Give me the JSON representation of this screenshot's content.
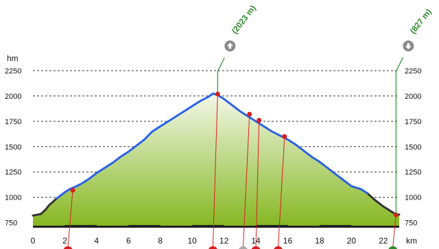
{
  "chart_data": {
    "type": "area",
    "title": "",
    "xlabel": "km",
    "ylabel": "hm",
    "x_unit": "km",
    "y_unit": "hm",
    "xlim": [
      0,
      23
    ],
    "ylim": [
      720,
      2250
    ],
    "x_ticks": [
      0,
      2,
      4,
      6,
      8,
      10,
      12,
      14,
      16,
      18,
      20,
      22
    ],
    "y_ticks": [
      750,
      1000,
      1250,
      1500,
      1750,
      2000,
      2250
    ],
    "grid": "horizontal-dashed",
    "line_color": "#2b62e6",
    "fill_top_color": "#f4f8ea",
    "fill_bottom_color": "#86b822",
    "series": [
      {
        "x": [
          0,
          0.5,
          0.8,
          1,
          1.5,
          2,
          2.3,
          2.6,
          3,
          3.5,
          4,
          4.5,
          5,
          5.5,
          6,
          6.5,
          7,
          7.5,
          8,
          8.5,
          9,
          9.5,
          10,
          10.5,
          11,
          11.3,
          11.6,
          12,
          12.5,
          13,
          13.5,
          14,
          14.5,
          15,
          15.5,
          16,
          16.5,
          17,
          17.5,
          18,
          18.5,
          19,
          19.5,
          20,
          20.3,
          20.6,
          21,
          21.5,
          22,
          22.5,
          22.85,
          23
        ],
        "values": [
          820,
          835,
          880,
          920,
          990,
          1050,
          1080,
          1100,
          1130,
          1180,
          1240,
          1290,
          1340,
          1400,
          1450,
          1510,
          1570,
          1650,
          1700,
          1750,
          1800,
          1850,
          1900,
          1950,
          1990,
          2023,
          2010,
          1970,
          1910,
          1850,
          1800,
          1750,
          1700,
          1650,
          1610,
          1570,
          1520,
          1460,
          1400,
          1350,
          1290,
          1230,
          1170,
          1110,
          1095,
          1080,
          1040,
          970,
          910,
          860,
          827,
          830
        ]
      }
    ],
    "waypoints": [
      {
        "x": 2.5,
        "y": 1070,
        "color": "#d81e1e"
      },
      {
        "x": 11.6,
        "y": 2020,
        "color": "#d81e1e"
      },
      {
        "x": 13.6,
        "y": 1820,
        "color": "#d81e1e"
      },
      {
        "x": 14.2,
        "y": 1760,
        "color": "#d81e1e"
      },
      {
        "x": 15.8,
        "y": 1600,
        "color": "#d81e1e"
      },
      {
        "x": 22.8,
        "y": 827,
        "color": "#d81e1e"
      }
    ],
    "bottom_markers": [
      {
        "x": 2.2,
        "color": "#d81e1e"
      },
      {
        "x": 11.3,
        "color": "#d81e1e"
      },
      {
        "x": 13.2,
        "color": "#aaaaaa"
      },
      {
        "x": 14.0,
        "color": "#d81e1e"
      },
      {
        "x": 15.4,
        "color": "#d81e1e"
      },
      {
        "x": 22.6,
        "color": "#2e8b2e"
      }
    ],
    "annotations": [
      {
        "x": 11.6,
        "label": "(2023 m)",
        "icon": "arrow-up-icon"
      },
      {
        "x": 23.0,
        "label": "(827 m)",
        "icon": "arrow-down-icon"
      }
    ]
  }
}
